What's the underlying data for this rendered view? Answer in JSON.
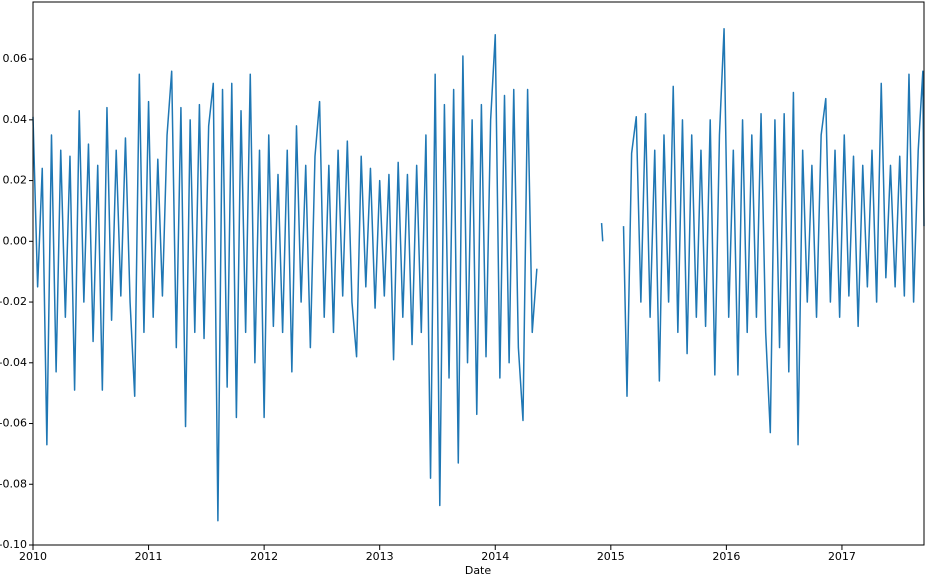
{
  "chart_data": {
    "type": "line",
    "xlabel": "Date",
    "color": "#1f77b4",
    "x": [
      2010.0,
      2010.04,
      2010.08,
      2010.12,
      2010.16,
      2010.2,
      2010.24,
      2010.28,
      2010.32,
      2010.36,
      2010.4,
      2010.44,
      2010.48,
      2010.52,
      2010.56,
      2010.6,
      2010.64,
      2010.68,
      2010.72,
      2010.76,
      2010.8,
      2010.84,
      2010.88,
      2010.92,
      2010.96,
      2011.0,
      2011.04,
      2011.08,
      2011.12,
      2011.16,
      2011.2,
      2011.24,
      2011.28,
      2011.32,
      2011.36,
      2011.4,
      2011.44,
      2011.48,
      2011.52,
      2011.56,
      2011.6,
      2011.64,
      2011.68,
      2011.72,
      2011.76,
      2011.8,
      2011.84,
      2011.88,
      2011.92,
      2011.96,
      2012.0,
      2012.04,
      2012.08,
      2012.12,
      2012.16,
      2012.2,
      2012.24,
      2012.28,
      2012.32,
      2012.36,
      2012.4,
      2012.44,
      2012.48,
      2012.52,
      2012.56,
      2012.6,
      2012.64,
      2012.68,
      2012.72,
      2012.76,
      2012.8,
      2012.84,
      2012.88,
      2012.92,
      2012.96,
      2013.0,
      2013.04,
      2013.08,
      2013.12,
      2013.16,
      2013.2,
      2013.24,
      2013.28,
      2013.32,
      2013.36,
      2013.4,
      2013.44,
      2013.48,
      2013.52,
      2013.56,
      2013.6,
      2013.64,
      2013.68,
      2013.72,
      2013.76,
      2013.8,
      2013.84,
      2013.88,
      2013.92,
      2013.96,
      2014.0,
      2014.04,
      2014.08,
      2014.12,
      2014.16,
      2014.2,
      2014.24,
      2014.28,
      2014.32,
      2014.36,
      2014.64,
      2014.92,
      2014.93,
      2015.02,
      2015.11,
      2015.14,
      2015.18,
      2015.22,
      2015.26,
      2015.3,
      2015.34,
      2015.38,
      2015.42,
      2015.46,
      2015.5,
      2015.54,
      2015.58,
      2015.62,
      2015.66,
      2015.7,
      2015.74,
      2015.78,
      2015.82,
      2015.86,
      2015.9,
      2015.94,
      2015.98,
      2016.02,
      2016.06,
      2016.1,
      2016.14,
      2016.18,
      2016.22,
      2016.26,
      2016.3,
      2016.34,
      2016.38,
      2016.42,
      2016.46,
      2016.5,
      2016.54,
      2016.58,
      2016.62,
      2016.66,
      2016.7,
      2016.74,
      2016.78,
      2016.82,
      2016.86,
      2016.9,
      2016.94,
      2016.98,
      2017.02,
      2017.06,
      2017.1,
      2017.14,
      2017.18,
      2017.22,
      2017.26,
      2017.3,
      2017.34,
      2017.38,
      2017.42,
      2017.46,
      2017.5,
      2017.54,
      2017.58,
      2017.62,
      2017.66,
      2017.7,
      2017.71
    ],
    "values": [
      0.041,
      -0.015,
      0.024,
      -0.067,
      0.035,
      -0.043,
      0.03,
      -0.025,
      0.028,
      -0.049,
      0.043,
      -0.02,
      0.032,
      -0.033,
      0.025,
      -0.049,
      0.044,
      -0.026,
      0.03,
      -0.018,
      0.034,
      -0.02,
      -0.051,
      0.055,
      -0.03,
      0.046,
      -0.025,
      0.027,
      -0.018,
      0.035,
      0.056,
      -0.035,
      0.044,
      -0.061,
      0.04,
      -0.03,
      0.045,
      -0.032,
      0.038,
      0.052,
      -0.092,
      0.05,
      -0.048,
      0.052,
      -0.058,
      0.043,
      -0.03,
      0.055,
      -0.04,
      0.03,
      -0.058,
      0.035,
      -0.028,
      0.022,
      -0.03,
      0.03,
      -0.043,
      0.038,
      -0.02,
      0.025,
      -0.035,
      0.028,
      0.046,
      -0.025,
      0.025,
      -0.03,
      0.03,
      -0.018,
      0.033,
      -0.02,
      -0.038,
      0.028,
      -0.015,
      0.024,
      -0.022,
      0.02,
      -0.018,
      0.022,
      -0.039,
      0.026,
      -0.025,
      0.022,
      -0.034,
      0.025,
      -0.03,
      0.035,
      -0.078,
      0.055,
      -0.087,
      0.045,
      -0.045,
      0.05,
      -0.073,
      0.061,
      -0.04,
      0.04,
      -0.057,
      0.045,
      -0.038,
      0.04,
      0.068,
      -0.045,
      0.048,
      -0.04,
      0.05,
      -0.035,
      -0.059,
      0.05,
      -0.03,
      -0.009,
      null,
      0.006,
      0.0,
      null,
      0.005,
      -0.051,
      0.029,
      0.041,
      -0.02,
      0.042,
      -0.025,
      0.03,
      -0.046,
      0.035,
      -0.02,
      0.051,
      -0.03,
      0.04,
      -0.037,
      0.035,
      -0.025,
      0.03,
      -0.028,
      0.04,
      -0.044,
      0.035,
      0.07,
      -0.025,
      0.03,
      -0.044,
      0.04,
      -0.03,
      0.035,
      -0.025,
      0.042,
      -0.03,
      -0.063,
      0.04,
      -0.035,
      0.042,
      -0.043,
      0.049,
      -0.067,
      0.03,
      -0.02,
      0.025,
      -0.025,
      0.035,
      0.047,
      -0.02,
      0.03,
      -0.025,
      0.035,
      -0.018,
      0.028,
      -0.028,
      0.025,
      -0.015,
      0.03,
      -0.02,
      0.052,
      -0.012,
      0.025,
      -0.015,
      0.028,
      -0.018,
      0.055,
      -0.02,
      0.03,
      0.056,
      0.005
    ],
    "xlim": [
      2010,
      2017.71
    ],
    "xticks": [
      2010,
      2011,
      2012,
      2013,
      2014,
      2015,
      2016,
      2017
    ],
    "ylim": [
      -0.1,
      0.0788
    ],
    "yticks": [
      {
        "value": -0.1,
        "label": "-0.10"
      },
      {
        "value": -0.08,
        "label": "-0.08"
      },
      {
        "value": -0.06,
        "label": "-0.06"
      },
      {
        "value": -0.04,
        "label": "-0.04"
      },
      {
        "value": -0.02,
        "label": "-0.02"
      },
      {
        "value": 0,
        "label": "0.00"
      },
      {
        "value": 0.02,
        "label": "0.02"
      },
      {
        "value": 0.04,
        "label": "0.04"
      },
      {
        "value": 0.06,
        "label": "0.06"
      }
    ]
  }
}
